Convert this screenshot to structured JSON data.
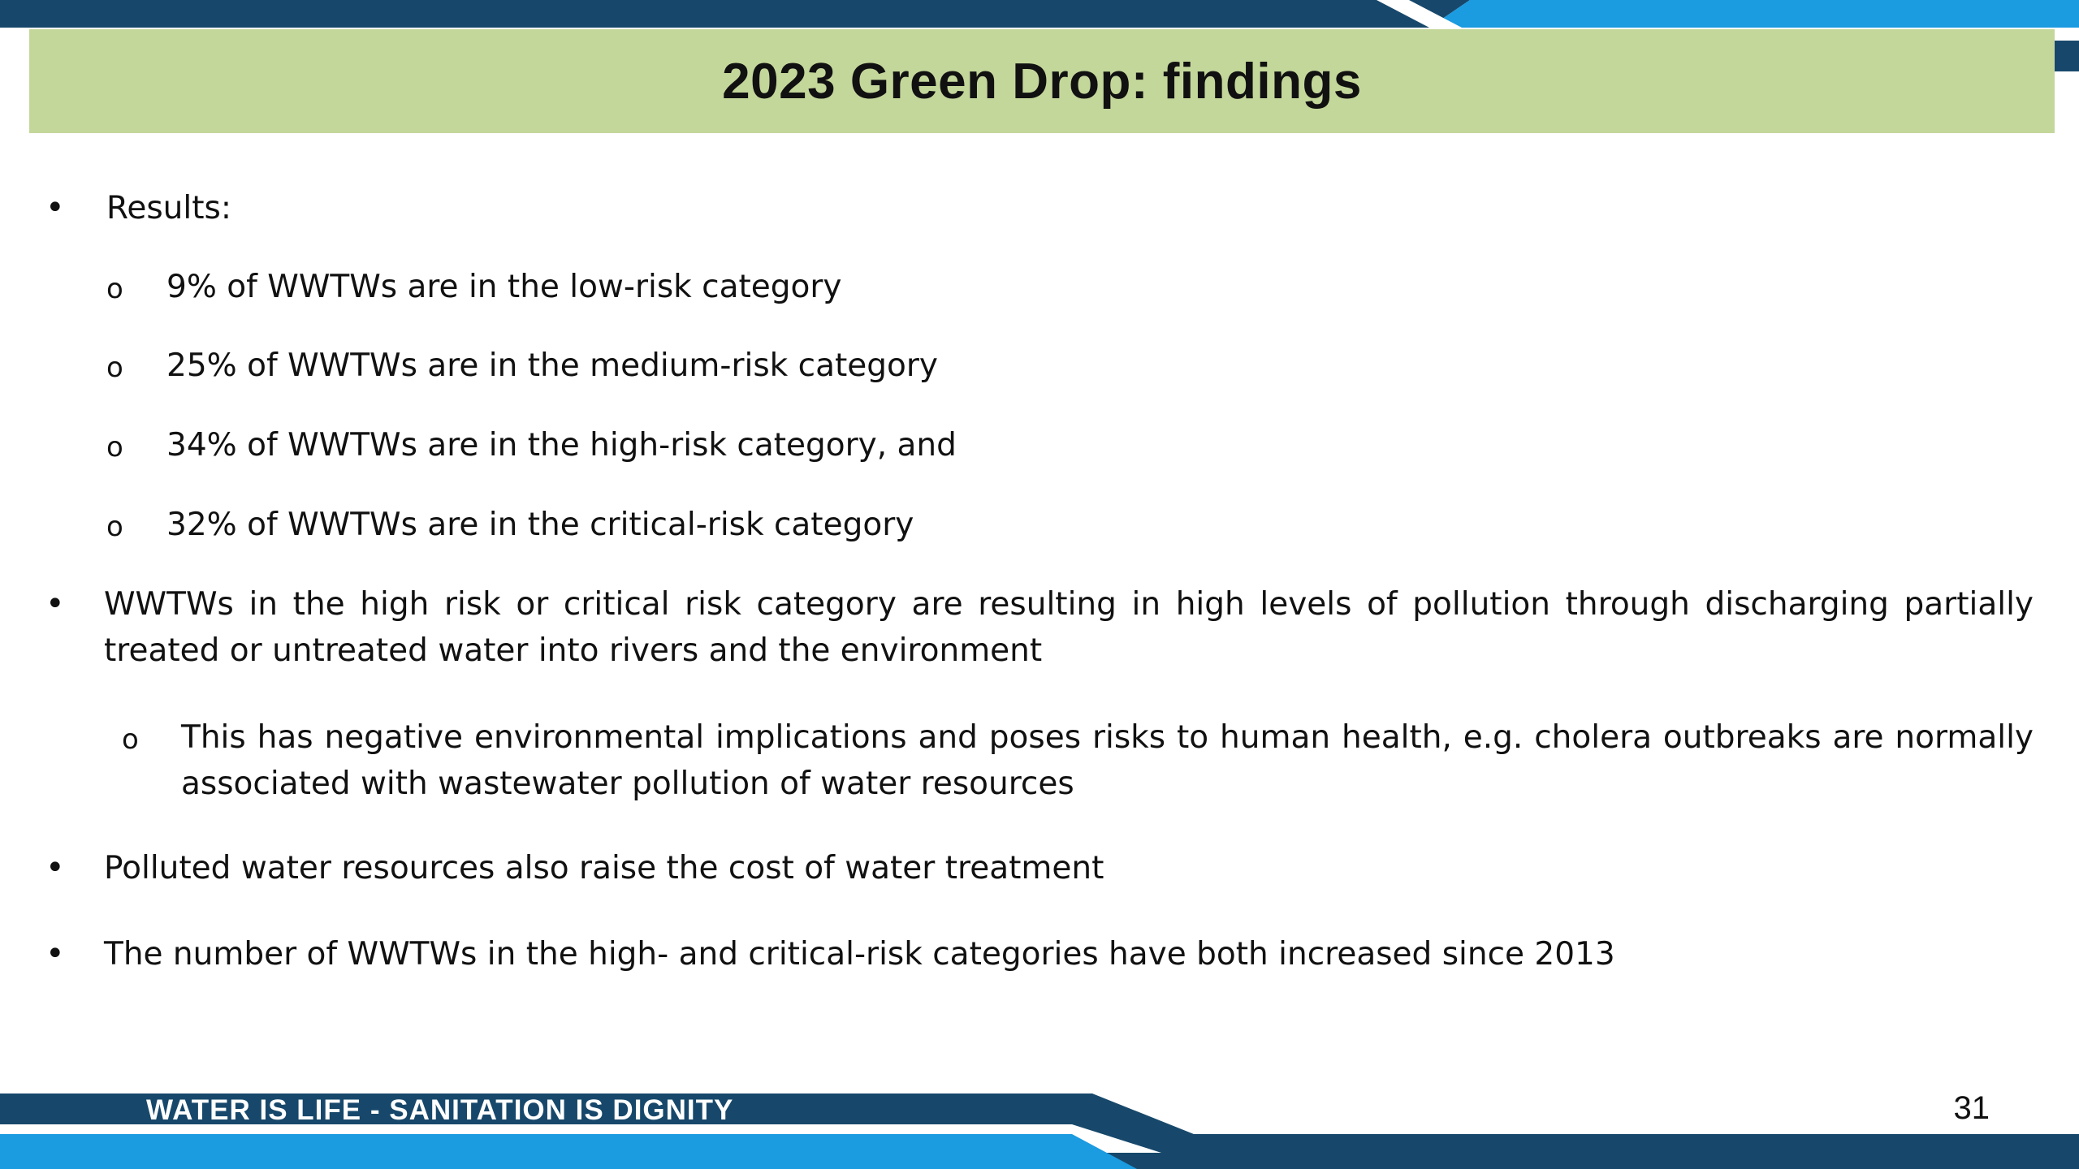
{
  "slide": {
    "title": "2023 Green Drop: findings",
    "bullets": [
      {
        "text": "Results:",
        "sub_items": [
          "9% of WWTWs are in the low-risk category",
          "25% of WWTWs are in the medium-risk category",
          "34% of WWTWs are in the high-risk category, and",
          "32% of WWTWs are in the critical-risk category"
        ]
      },
      {
        "text": "WWTWs in the high risk or critical risk category are resulting in high levels of pollution through discharging partially treated or untreated water into rivers and the environment",
        "sub_items": [
          "This has negative environmental implications and poses risks to human health, e.g. cholera outbreaks are normally associated with wastewater pollution of water resources"
        ]
      },
      {
        "text": "Polluted water resources also raise the cost of water treatment"
      },
      {
        "text": "The number of WWTWs in the high- and critical-risk categories have both increased since 2013"
      }
    ],
    "bullet_glyph": "•",
    "sub_bullet_glyph": "o"
  },
  "footer": {
    "tagline": "WATER IS LIFE - SANITATION IS DIGNITY",
    "page_number": "31"
  },
  "colors": {
    "navy": "#17486b",
    "sky_blue": "#1b9be0",
    "title_band_green": "#c4d79b",
    "text": "#111111"
  }
}
